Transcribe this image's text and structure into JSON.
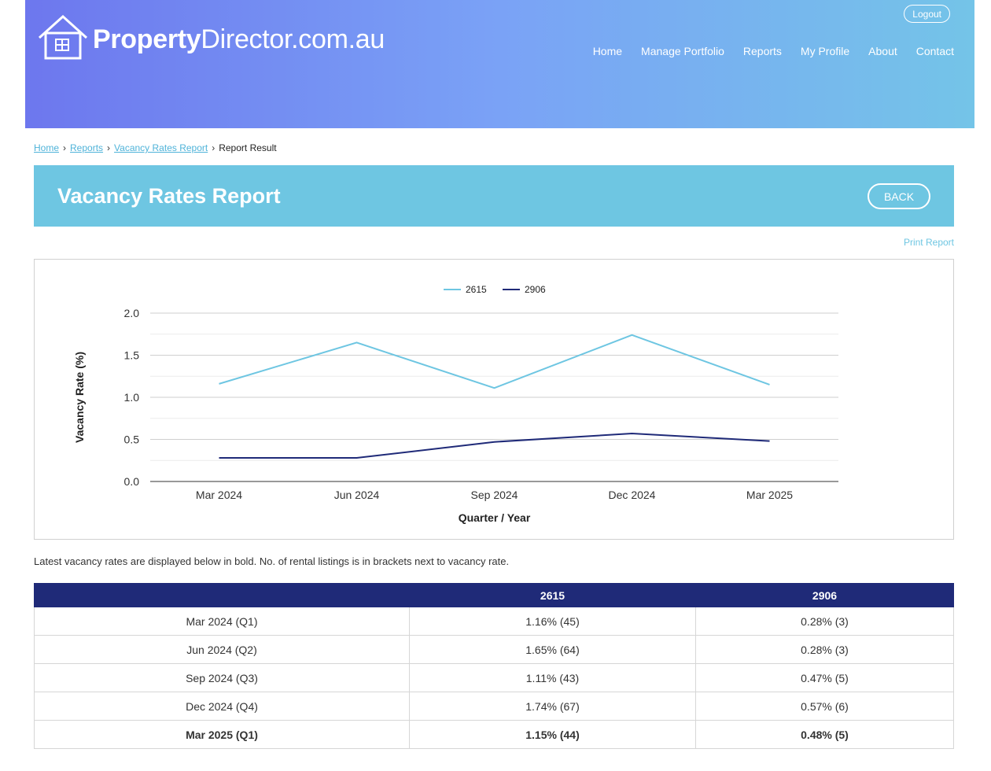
{
  "header": {
    "brand_bold": "Property",
    "brand_light": "Director.com.au",
    "logout_label": "Logout",
    "nav": [
      "Home",
      "Manage Portfolio",
      "Reports",
      "My Profile",
      "About",
      "Contact"
    ]
  },
  "breadcrumb": {
    "items": [
      "Home",
      "Reports",
      "Vacancy Rates Report"
    ],
    "current": "Report Result"
  },
  "page": {
    "title": "Vacancy Rates Report",
    "back_label": "BACK",
    "print_label": "Print Report",
    "note": "Latest vacancy rates are displayed below in bold. No. of rental listings is in brackets next to vacancy rate."
  },
  "colors": {
    "series_2615": "#6ec6e2",
    "series_2906": "#1f2a78",
    "header_bar": "#6ec6e2",
    "table_header": "#1f2a78"
  },
  "chart_data": {
    "type": "line",
    "categories": [
      "Mar 2024",
      "Jun 2024",
      "Sep 2024",
      "Dec 2024",
      "Mar 2025"
    ],
    "series": [
      {
        "name": "2615",
        "values": [
          1.16,
          1.65,
          1.11,
          1.74,
          1.15
        ]
      },
      {
        "name": "2906",
        "values": [
          0.28,
          0.28,
          0.47,
          0.57,
          0.48
        ]
      }
    ],
    "xlabel": "Quarter / Year",
    "ylabel": "Vacancy Rate (%)",
    "ylim": [
      0,
      2.0
    ],
    "yticks": [
      "0.0",
      "0.5",
      "1.0",
      "1.5",
      "2.0"
    ],
    "legend": "top-center",
    "grid": true
  },
  "table": {
    "headers": [
      "",
      "2615",
      "2906"
    ],
    "rows": [
      [
        "Mar 2024 (Q1)",
        "1.16% (45)",
        "0.28% (3)"
      ],
      [
        "Jun 2024 (Q2)",
        "1.65% (64)",
        "0.28% (3)"
      ],
      [
        "Sep 2024 (Q3)",
        "1.11% (43)",
        "0.47% (5)"
      ],
      [
        "Dec 2024 (Q4)",
        "1.74% (67)",
        "0.57% (6)"
      ],
      [
        "Mar 2025 (Q1)",
        "1.15% (44)",
        "0.48% (5)"
      ]
    ]
  }
}
